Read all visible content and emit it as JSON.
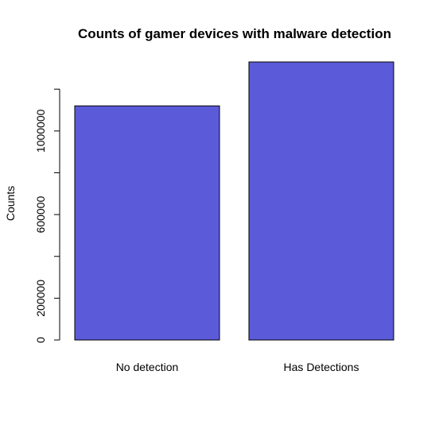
{
  "chart_data": {
    "type": "bar",
    "title": "Counts of gamer devices with malware detection",
    "xlabel": "",
    "ylabel": "Counts",
    "categories": [
      "No detection",
      "Has Detections"
    ],
    "values": [
      1120000,
      1330000
    ],
    "ylim": [
      0,
      1330000
    ],
    "y_ticks": [
      0,
      200000,
      400000,
      600000,
      800000,
      1000000,
      1200000
    ],
    "y_tick_labels": [
      "0",
      "200000",
      "",
      "600000",
      "",
      "1000000",
      ""
    ],
    "bar_color": "#5b5bd9",
    "bar_border_color": "#000000",
    "grid": false,
    "legend": "none"
  }
}
